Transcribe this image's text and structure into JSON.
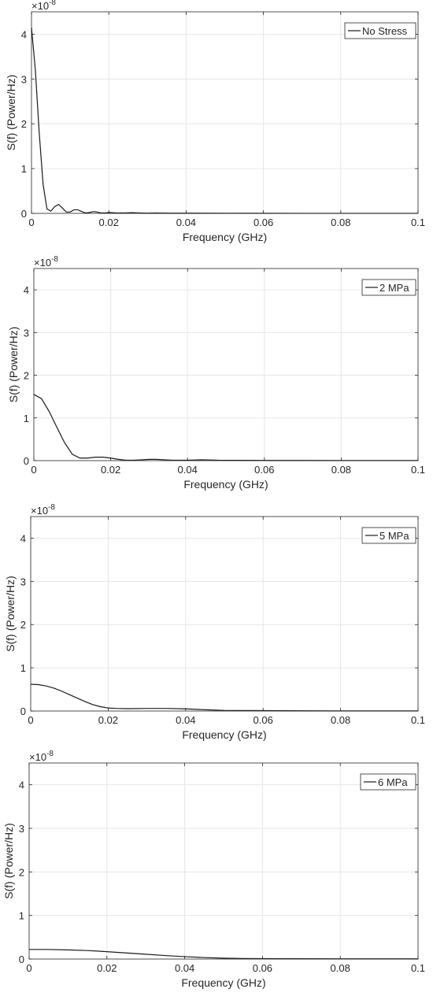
{
  "chart_data": [
    {
      "type": "line",
      "xlabel": "Frequency (GHz)",
      "ylabel": "S(f) (Power/Hz)",
      "exponent_label": "×10",
      "exponent": "-8",
      "xlim": [
        0,
        0.1
      ],
      "ylim": [
        0,
        4.5
      ],
      "xticks": [
        "0",
        "0.02",
        "0.04",
        "0.06",
        "0.08",
        "0.1"
      ],
      "yticks": [
        "0",
        "1",
        "2",
        "3",
        "4"
      ],
      "grid": true,
      "legend_position": "top-right",
      "series": [
        {
          "name": "No Stress",
          "x": [
            0,
            0.001,
            0.002,
            0.003,
            0.004,
            0.005,
            0.006,
            0.007,
            0.008,
            0.009,
            0.01,
            0.011,
            0.012,
            0.013,
            0.014,
            0.015,
            0.016,
            0.017,
            0.018,
            0.019,
            0.02,
            0.022,
            0.024,
            0.026,
            0.028,
            0.03,
            0.032,
            0.034,
            0.036,
            0.04,
            0.05,
            0.06,
            0.08,
            0.1
          ],
          "y": [
            4.15,
            3.2,
            1.8,
            0.65,
            0.1,
            0.05,
            0.15,
            0.2,
            0.12,
            0.03,
            0.03,
            0.08,
            0.08,
            0.04,
            0.01,
            0.02,
            0.04,
            0.03,
            0.01,
            0.01,
            0.02,
            0.01,
            0.01,
            0.015,
            0.01,
            0.005,
            0.01,
            0.008,
            0.005,
            0.005,
            0.003,
            0.002,
            0.001,
            0.001
          ]
        },
        {
          "name": "2 MPa",
          "x": [
            0,
            0.002,
            0.004,
            0.006,
            0.008,
            0.01,
            0.012,
            0.014,
            0.016,
            0.018,
            0.02,
            0.022,
            0.024,
            0.026,
            0.028,
            0.03,
            0.032,
            0.034,
            0.036,
            0.04,
            0.044,
            0.048,
            0.06,
            0.08,
            0.1
          ],
          "y": [
            1.55,
            1.45,
            1.15,
            0.78,
            0.42,
            0.15,
            0.06,
            0.06,
            0.08,
            0.08,
            0.06,
            0.03,
            0.01,
            0.01,
            0.02,
            0.03,
            0.03,
            0.02,
            0.01,
            0.01,
            0.02,
            0.01,
            0.005,
            0.003,
            0.002
          ]
        },
        {
          "name": "5 MPa",
          "x": [
            0,
            0.002,
            0.004,
            0.006,
            0.008,
            0.01,
            0.012,
            0.014,
            0.016,
            0.018,
            0.02,
            0.022,
            0.025,
            0.03,
            0.035,
            0.04,
            0.045,
            0.05,
            0.06,
            0.07,
            0.08,
            0.1
          ],
          "y": [
            0.62,
            0.61,
            0.58,
            0.53,
            0.46,
            0.38,
            0.3,
            0.22,
            0.15,
            0.1,
            0.07,
            0.06,
            0.055,
            0.06,
            0.06,
            0.05,
            0.03,
            0.015,
            0.01,
            0.005,
            0.003,
            0.002
          ]
        },
        {
          "name": "6 MPa",
          "x": [
            0,
            0.005,
            0.01,
            0.015,
            0.02,
            0.025,
            0.03,
            0.035,
            0.04,
            0.045,
            0.05,
            0.055,
            0.06,
            0.07,
            0.08,
            0.1
          ],
          "y": [
            0.22,
            0.22,
            0.21,
            0.195,
            0.17,
            0.14,
            0.11,
            0.08,
            0.055,
            0.035,
            0.02,
            0.012,
            0.01,
            0.008,
            0.006,
            0.005
          ]
        }
      ]
    }
  ]
}
